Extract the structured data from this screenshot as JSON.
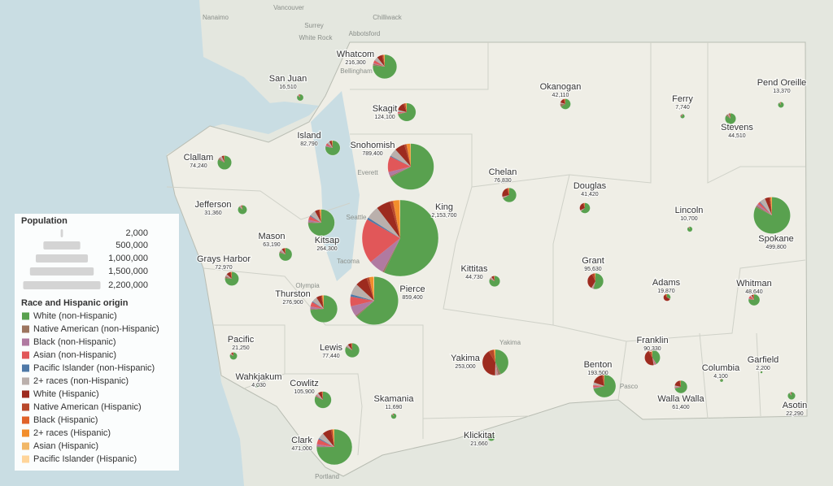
{
  "legend": {
    "population_title": "Population",
    "population_sizes": [
      {
        "value": 2000,
        "label": "2,000"
      },
      {
        "value": 500000,
        "label": "500,000"
      },
      {
        "value": 1000000,
        "label": "1,000,000"
      },
      {
        "value": 1500000,
        "label": "1,500,000"
      },
      {
        "value": 2200000,
        "label": "2,200,000"
      }
    ],
    "race_title": "Race and Hispanic origin",
    "categories": [
      {
        "name": "White (non-Hispanic)",
        "color": "#59a14f"
      },
      {
        "name": "Native American (non-Hispanic)",
        "color": "#9c755f"
      },
      {
        "name": "Black (non-Hispanic)",
        "color": "#b07aa1"
      },
      {
        "name": "Asian (non-Hispanic)",
        "color": "#e15759"
      },
      {
        "name": "Pacific Islander (non-Hispanic)",
        "color": "#4e79a7"
      },
      {
        "name": "2+ races (non-Hispanic)",
        "color": "#bab0ac"
      },
      {
        "name": "White (Hispanic)",
        "color": "#9d2b1f"
      },
      {
        "name": "Native American (Hispanic)",
        "color": "#b8482a"
      },
      {
        "name": "Black (Hispanic)",
        "color": "#e0632a"
      },
      {
        "name": "2+ races (Hispanic)",
        "color": "#f28e2b"
      },
      {
        "name": "Asian (Hispanic)",
        "color": "#f1b766"
      },
      {
        "name": "Pacific Islander (Hispanic)",
        "color": "#ffd59a"
      }
    ]
  },
  "counties": [
    {
      "name": "San Juan",
      "population": {
        "value": 16510,
        "label": "16,510"
      },
      "shares": [
        86,
        0.6,
        0.4,
        1.5,
        0.2,
        4,
        5,
        1,
        0.1,
        1,
        0.1,
        0.1
      ]
    },
    {
      "name": "Whatcom",
      "population": {
        "value": 216300,
        "label": "216,300"
      },
      "shares": [
        77,
        2.5,
        1,
        4,
        0.3,
        5,
        7,
        2,
        0.1,
        1.5,
        0.2,
        0.1
      ]
    },
    {
      "name": "Skagit",
      "population": {
        "value": 124100,
        "label": "124,100"
      },
      "shares": [
        71,
        1.5,
        0.7,
        2.5,
        0.3,
        3.5,
        15,
        3.5,
        0.1,
        2,
        0.2,
        0.1
      ]
    },
    {
      "name": "Okanogan",
      "population": {
        "value": 42110,
        "label": "42,110"
      },
      "shares": [
        66,
        10,
        0.3,
        0.7,
        0.1,
        3,
        15,
        3.5,
        0.1,
        1.5,
        0.1,
        0.1
      ]
    },
    {
      "name": "Ferry",
      "population": {
        "value": 7740,
        "label": "7,740"
      },
      "shares": [
        74,
        16,
        0.3,
        0.5,
        0.1,
        5,
        3,
        1,
        0.1,
        0.5,
        0.1,
        0.1
      ]
    },
    {
      "name": "Pend Oreille",
      "population": {
        "value": 13370,
        "label": "13,370"
      },
      "shares": [
        87,
        3,
        0.3,
        0.6,
        0.1,
        4,
        3,
        1,
        0.1,
        0.7,
        0.1,
        0.1
      ]
    },
    {
      "name": "Stevens",
      "population": {
        "value": 44510,
        "label": "44,510"
      },
      "shares": [
        85,
        5,
        0.4,
        0.7,
        0.1,
        4,
        3,
        1,
        0.1,
        0.6,
        0.1,
        0.1
      ]
    },
    {
      "name": "Island",
      "population": {
        "value": 82790,
        "label": "82,790"
      },
      "shares": [
        78,
        0.8,
        2.5,
        4.5,
        0.7,
        6,
        5,
        1,
        0.2,
        1.2,
        0.2,
        0.1
      ]
    },
    {
      "name": "Snohomish",
      "population": {
        "value": 789400,
        "label": "789,400"
      },
      "shares": [
        67,
        1,
        3,
        11,
        0.6,
        5.5,
        7,
        1.5,
        0.2,
        2.5,
        0.3,
        0.1
      ]
    },
    {
      "name": "Clallam",
      "population": {
        "value": 74240,
        "label": "74,240"
      },
      "shares": [
        82,
        4.5,
        0.8,
        1.5,
        0.2,
        4.5,
        4.5,
        1,
        0.1,
        0.7,
        0.1,
        0.1
      ]
    },
    {
      "name": "Chelan",
      "population": {
        "value": 76830,
        "label": "76,830"
      },
      "shares": [
        67,
        0.8,
        0.3,
        1,
        0.1,
        2,
        23,
        4,
        0.1,
        1.5,
        0.1,
        0.1
      ]
    },
    {
      "name": "Douglas",
      "population": {
        "value": 41420,
        "label": "41,420"
      },
      "shares": [
        64,
        0.8,
        0.3,
        0.8,
        0.1,
        2,
        26,
        4,
        0.1,
        1.5,
        0.1,
        0.1
      ]
    },
    {
      "name": "Jefferson",
      "population": {
        "value": 31360,
        "label": "31,360"
      },
      "shares": [
        87,
        1.5,
        0.6,
        1.5,
        0.2,
        4.5,
        3,
        0.8,
        0.1,
        0.6,
        0.1,
        0.1
      ]
    },
    {
      "name": "King",
      "population": {
        "value": 2153700,
        "label": "2,153,700"
      },
      "shares": [
        57,
        0.7,
        6.5,
        19,
        0.9,
        5.5,
        6,
        1.2,
        0.3,
        2.5,
        0.3,
        0.1
      ]
    },
    {
      "name": "Lincoln",
      "population": {
        "value": 10700,
        "label": "10,700"
      },
      "shares": [
        90,
        1.5,
        0.3,
        0.5,
        0.1,
        3.5,
        3,
        0.5,
        0.1,
        0.4,
        0.1,
        0.1
      ]
    },
    {
      "name": "Spokane",
      "population": {
        "value": 499800,
        "label": "499,800"
      },
      "shares": [
        83,
        1.4,
        1.8,
        2.2,
        0.7,
        5,
        4,
        1,
        0.2,
        1,
        0.1,
        0.1
      ]
    },
    {
      "name": "Mason",
      "population": {
        "value": 63190,
        "label": "63,190"
      },
      "shares": [
        79,
        3.5,
        1,
        1.3,
        0.5,
        5,
        7,
        1.5,
        0.1,
        1,
        0.1,
        0.1
      ]
    },
    {
      "name": "Kitsap",
      "population": {
        "value": 264300,
        "label": "264,300"
      },
      "shares": [
        75,
        1.3,
        2.7,
        5,
        1.1,
        7.5,
        5,
        1,
        0.3,
        1.5,
        0.2,
        0.1
      ]
    },
    {
      "name": "Grays Harbor",
      "population": {
        "value": 72970,
        "label": "72,970"
      },
      "shares": [
        76,
        4.5,
        0.6,
        1.2,
        0.3,
        4,
        10,
        2,
        0.1,
        1,
        0.1,
        0.1
      ]
    },
    {
      "name": "Kittitas",
      "population": {
        "value": 44730,
        "label": "44,730"
      },
      "shares": [
        82,
        0.8,
        0.9,
        2,
        0.2,
        4,
        7.5,
        1.3,
        0.1,
        1,
        0.1,
        0.1
      ]
    },
    {
      "name": "Grant",
      "population": {
        "value": 95630,
        "label": "95,630"
      },
      "shares": [
        54,
        0.8,
        0.8,
        0.9,
        0.1,
        2,
        34,
        5.5,
        0.2,
        1.5,
        0.1,
        0.1
      ]
    },
    {
      "name": "Adams",
      "population": {
        "value": 19870,
        "label": "19,870"
      },
      "shares": [
        31,
        0.5,
        0.3,
        0.5,
        0.1,
        1,
        55,
        9,
        0.2,
        2,
        0.2,
        0.2
      ]
    },
    {
      "name": "Whitman",
      "population": {
        "value": 48640,
        "label": "48,640"
      },
      "shares": [
        77,
        0.7,
        2,
        8,
        0.3,
        4.5,
        5,
        1,
        0.1,
        1,
        0.2,
        0.1
      ]
    },
    {
      "name": "Thurston",
      "population": {
        "value": 276900,
        "label": "276,900"
      },
      "shares": [
        74,
        1.2,
        3,
        5.5,
        1,
        6.5,
        6,
        1.2,
        0.2,
        1.5,
        0.2,
        0.1
      ]
    },
    {
      "name": "Pierce",
      "population": {
        "value": 859400,
        "label": "859,400"
      },
      "shares": [
        63,
        1,
        7,
        6.5,
        1.6,
        7.5,
        8,
        1.6,
        0.4,
        2.5,
        0.3,
        0.3
      ]
    },
    {
      "name": "Pacific",
      "population": {
        "value": 21250,
        "label": "21,250"
      },
      "shares": [
        81,
        2,
        0.4,
        2,
        0.2,
        3.5,
        8.5,
        1.5,
        0.1,
        0.7,
        0.1,
        0.1
      ]
    },
    {
      "name": "Lewis",
      "population": {
        "value": 77440,
        "label": "77,440"
      },
      "shares": [
        83,
        1.2,
        0.5,
        0.8,
        0.3,
        4,
        8,
        1.5,
        0.1,
        0.6,
        0.1,
        0.1
      ]
    },
    {
      "name": "Yakima",
      "population": {
        "value": 253000,
        "label": "253,000"
      },
      "shares": [
        43,
        3.5,
        0.8,
        1,
        0.1,
        2,
        41,
        6.5,
        0.2,
        1.7,
        0.1,
        0.1
      ]
    },
    {
      "name": "Benton",
      "population": {
        "value": 193500,
        "label": "193,500"
      },
      "shares": [
        71,
        0.8,
        1.5,
        3,
        0.2,
        4,
        16,
        2.5,
        0.2,
        0.8,
        0.1,
        0.1
      ]
    },
    {
      "name": "Franklin",
      "population": {
        "value": 90330,
        "label": "90,330"
      },
      "shares": [
        41,
        0.6,
        1.7,
        1.8,
        0.2,
        2,
        44,
        6.5,
        0.3,
        1.6,
        0.2,
        0.1
      ]
    },
    {
      "name": "Columbia",
      "population": {
        "value": 4100,
        "label": "4,100"
      },
      "shares": [
        86,
        1,
        0.3,
        0.7,
        0.1,
        3.5,
        6.5,
        1.2,
        0.1,
        0.5,
        0.1,
        0.1
      ]
    },
    {
      "name": "Garfield",
      "population": {
        "value": 2200,
        "label": "2,200"
      },
      "shares": [
        91,
        0.6,
        0.2,
        0.5,
        0.1,
        3,
        3.5,
        0.6,
        0.1,
        0.3,
        0.1,
        0.1
      ]
    },
    {
      "name": "Walla Walla",
      "population": {
        "value": 61400,
        "label": "61,400"
      },
      "shares": [
        71,
        0.8,
        1.6,
        1.3,
        0.3,
        3.5,
        18,
        2.5,
        0.2,
        0.7,
        0.1,
        0.1
      ]
    },
    {
      "name": "Asotin",
      "population": {
        "value": 22290,
        "label": "22,290"
      },
      "shares": [
        89,
        1.3,
        0.4,
        0.6,
        0.2,
        4,
        3.5,
        0.6,
        0.1,
        0.3,
        0.1,
        0.1
      ]
    },
    {
      "name": "Wahkjakum",
      "population": {
        "value": 4030,
        "label": "4,030"
      },
      "shares": [
        88,
        1.5,
        0.3,
        0.8,
        0.2,
        4,
        4,
        0.8,
        0.1,
        0.3,
        0.1,
        0.1
      ]
    },
    {
      "name": "Cowlitz",
      "population": {
        "value": 105900,
        "label": "105,900"
      },
      "shares": [
        82,
        1.3,
        0.7,
        1.4,
        0.4,
        4.5,
        7.5,
        1.5,
        0.1,
        0.6,
        0.1,
        0.1
      ]
    },
    {
      "name": "Skamania",
      "population": {
        "value": 11690,
        "label": "11,690"
      },
      "shares": [
        87,
        1.5,
        0.3,
        0.8,
        0.1,
        4,
        4.5,
        0.8,
        0.1,
        0.5,
        0.1,
        0.1
      ]
    },
    {
      "name": "Klickitat",
      "population": {
        "value": 21660,
        "label": "21,660"
      },
      "shares": [
        80,
        2.5,
        0.3,
        0.7,
        0.1,
        3.5,
        10,
        2,
        0.1,
        0.6,
        0.1,
        0.1
      ]
    },
    {
      "name": "Clark",
      "population": {
        "value": 471000,
        "label": "471,000"
      },
      "shares": [
        75,
        0.7,
        1.9,
        4.8,
        1,
        5.5,
        8,
        1.5,
        0.2,
        1.2,
        0.2,
        0.1
      ]
    }
  ],
  "places": [
    "Vancouver",
    "Nanaimo",
    "Surrey",
    "Chilliwack",
    "White Rock",
    "Abbotsford",
    "Bellingham",
    "Everett",
    "Seattle",
    "Tacoma",
    "Olympia",
    "Yakima",
    "Pasco",
    "Portland"
  ]
}
